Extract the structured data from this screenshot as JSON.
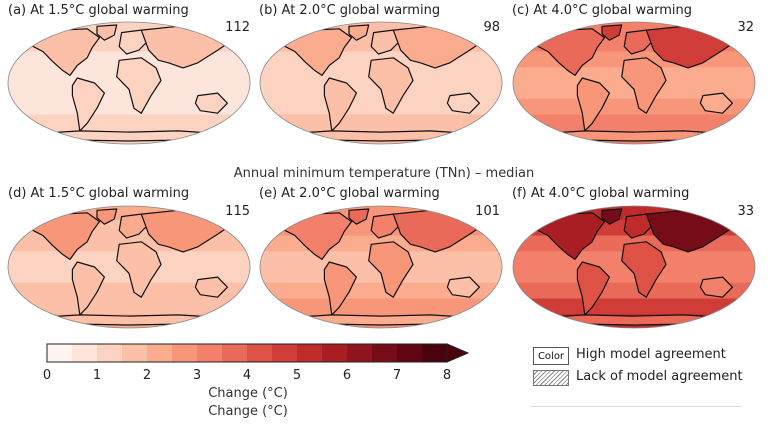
{
  "section_title": "Annual minimum temperature (TNn) – median",
  "panels": [
    {
      "label": "(a)  At 1.5°C global warming",
      "count": "112",
      "intensity": 1.0
    },
    {
      "label": "(b)  At 2.0°C global warming",
      "count": "98",
      "intensity": 1.6
    },
    {
      "label": "(c)  At 4.0°C global warming",
      "count": "32",
      "intensity": 3.4
    },
    {
      "label": "(d)  At 1.5°C global warming",
      "count": "115",
      "intensity": 2.0
    },
    {
      "label": "(e)  At 2.0°C global warming",
      "count": "101",
      "intensity": 2.8
    },
    {
      "label": "(f)  At 4.0°C global warming",
      "count": "33",
      "intensity": 5.2
    }
  ],
  "colorbar": {
    "ticks": [
      "0",
      "1",
      "2",
      "3",
      "4",
      "5",
      "6",
      "7",
      "8"
    ],
    "labels": [
      "Change (°C)",
      "Change (°C)"
    ],
    "colors": [
      "#fff5f0",
      "#fde5dc",
      "#fcd2c1",
      "#fcbfa7",
      "#fbab8e",
      "#f79679",
      "#f2806a",
      "#e96a58",
      "#de5246",
      "#d03c37",
      "#bf2b2b",
      "#a81e23",
      "#8f141d",
      "#760c18",
      "#5f0612",
      "#4a020d"
    ]
  },
  "legend": {
    "box_text": "Color",
    "high_agreement": "High model agreement",
    "lack_agreement": "Lack of model agreement"
  }
}
